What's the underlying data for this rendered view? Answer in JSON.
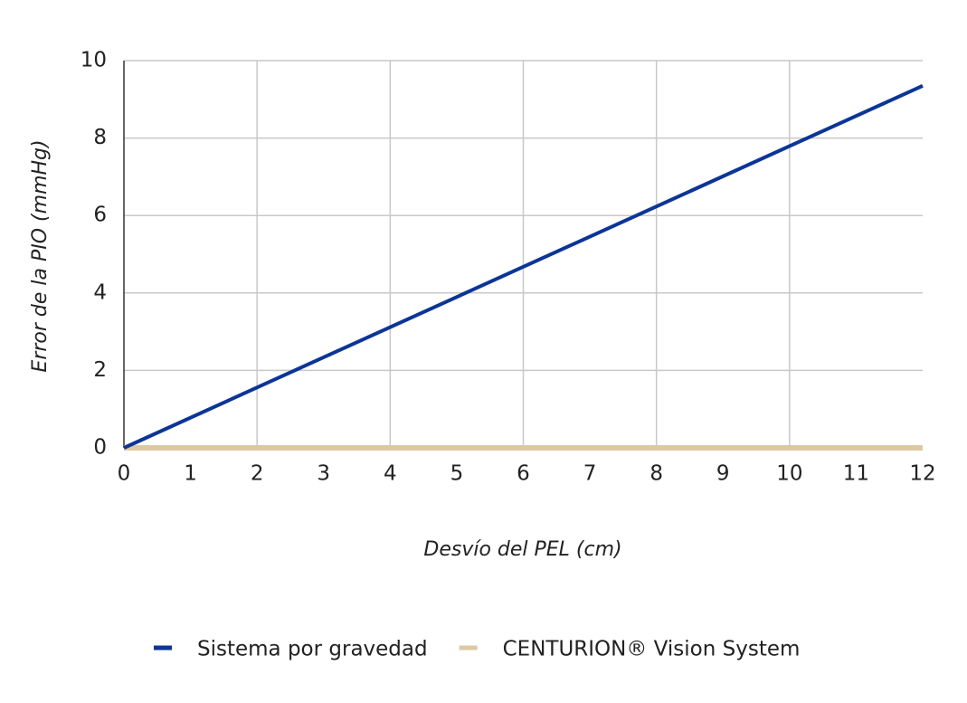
{
  "chart_data": {
    "type": "line",
    "x_label": "Desvío del PEL (cm)",
    "y_label": "Error de la PIO (mmHg)",
    "x": [
      0,
      12
    ],
    "series": [
      {
        "name": "Sistema por gravedad",
        "color": "#0b3596",
        "values": [
          0,
          9.35
        ]
      },
      {
        "name": "CENTURION® Vision System",
        "color": "#dcc9a3",
        "values": [
          0,
          0
        ]
      }
    ],
    "xlim": [
      0,
      12
    ],
    "xticks": [
      0,
      1,
      2,
      3,
      4,
      5,
      6,
      7,
      8,
      9,
      10,
      11,
      12
    ],
    "ylim": [
      0,
      10
    ],
    "yticks": [
      0,
      2,
      4,
      6,
      8,
      10
    ],
    "xgrid": [
      2,
      4,
      6,
      8,
      10
    ],
    "grid": true,
    "legend": "bottom"
  }
}
